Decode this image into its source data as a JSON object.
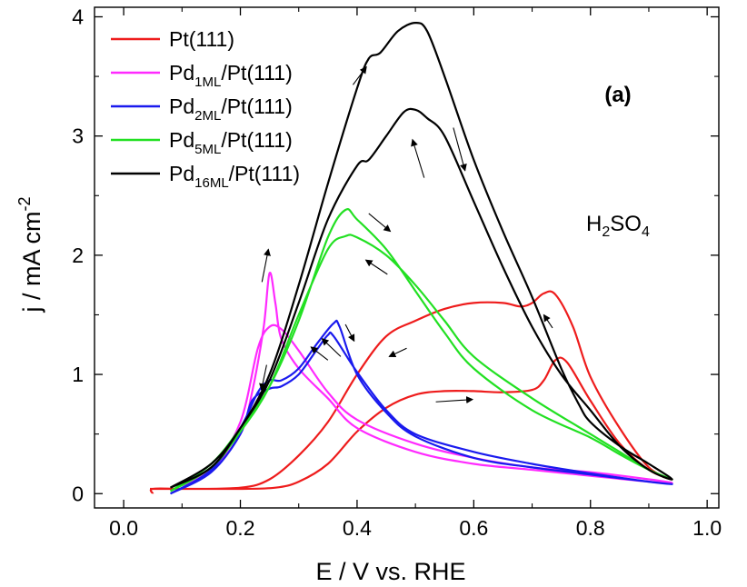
{
  "chart_data": {
    "type": "line",
    "panel_label": "(a)",
    "electrolyte": {
      "main": "H",
      "sub1": "2",
      "mid": "SO",
      "sub2": "4"
    },
    "xlabel": "E / V vs. RHE",
    "ylabel": {
      "prefix": "j / mA cm",
      "sup": "-2"
    },
    "xlim": [
      -0.05,
      1.02
    ],
    "ylim": [
      -0.12,
      4.08
    ],
    "xticks": [
      0.0,
      0.2,
      0.4,
      0.6,
      0.8,
      1.0
    ],
    "yticks": [
      0,
      1,
      2,
      3,
      4
    ],
    "xtick_labels": [
      "0.0",
      "0.2",
      "0.4",
      "0.6",
      "0.8",
      "1.0"
    ],
    "ytick_labels": [
      "0",
      "1",
      "2",
      "3",
      "4"
    ],
    "legend": {
      "placement": "top-left"
    },
    "series": [
      {
        "name": "Pt(111)",
        "label_parts": [
          "Pt(111)"
        ],
        "color": "#ee1c1c",
        "x": [
          0.05,
          0.05,
          0.1,
          0.2,
          0.26,
          0.3,
          0.35,
          0.4,
          0.45,
          0.5,
          0.55,
          0.6,
          0.65,
          0.7,
          0.72,
          0.74,
          0.76,
          0.8,
          0.85,
          0.9,
          0.94,
          0.9,
          0.85,
          0.8,
          0.77,
          0.74,
          0.72,
          0.7,
          0.68,
          0.65,
          0.6,
          0.55,
          0.5,
          0.45,
          0.4,
          0.35,
          0.3,
          0.25,
          0.2,
          0.1,
          0.045
        ],
        "y": [
          0.0,
          0.04,
          0.04,
          0.04,
          0.05,
          0.1,
          0.25,
          0.52,
          0.72,
          0.83,
          0.86,
          0.86,
          0.85,
          0.87,
          0.95,
          1.12,
          1.1,
          0.78,
          0.42,
          0.2,
          0.12,
          0.22,
          0.55,
          0.98,
          1.4,
          1.67,
          1.68,
          1.6,
          1.57,
          1.6,
          1.6,
          1.55,
          1.45,
          1.32,
          1.0,
          0.6,
          0.32,
          0.12,
          0.05,
          0.04,
          0.04
        ]
      },
      {
        "name": "Pd1ML/Pt(111)",
        "label_parts": [
          "Pd",
          "1ML",
          "/Pt(111)"
        ],
        "color": "#ff2aff",
        "x": [
          0.1,
          0.15,
          0.2,
          0.22,
          0.24,
          0.25,
          0.26,
          0.27,
          0.3,
          0.35,
          0.4,
          0.5,
          0.6,
          0.7,
          0.8,
          0.9,
          0.94,
          0.9,
          0.8,
          0.7,
          0.6,
          0.5,
          0.4,
          0.35,
          0.3,
          0.27,
          0.25,
          0.23,
          0.2,
          0.15,
          0.1
        ],
        "y": [
          0.07,
          0.2,
          0.5,
          0.85,
          1.4,
          1.85,
          1.6,
          1.3,
          1.05,
          0.8,
          0.55,
          0.35,
          0.25,
          0.2,
          0.15,
          0.1,
          0.09,
          0.12,
          0.18,
          0.22,
          0.3,
          0.42,
          0.62,
          0.85,
          1.2,
          1.38,
          1.4,
          1.22,
          0.6,
          0.2,
          0.07
        ]
      },
      {
        "name": "Pd2ML/Pt(111)",
        "label_parts": [
          "Pd",
          "2ML",
          "/Pt(111)"
        ],
        "color": "#1a1aee",
        "x": [
          0.08,
          0.15,
          0.2,
          0.23,
          0.25,
          0.27,
          0.3,
          0.33,
          0.36,
          0.37,
          0.4,
          0.45,
          0.5,
          0.6,
          0.7,
          0.8,
          0.9,
          0.94,
          0.9,
          0.8,
          0.7,
          0.6,
          0.5,
          0.45,
          0.4,
          0.36,
          0.35,
          0.33,
          0.3,
          0.27,
          0.25,
          0.22,
          0.2,
          0.15,
          0.08
        ],
        "y": [
          0.0,
          0.2,
          0.55,
          0.85,
          0.95,
          0.95,
          1.05,
          1.25,
          1.43,
          1.4,
          1.0,
          0.68,
          0.48,
          0.3,
          0.22,
          0.16,
          0.1,
          0.08,
          0.1,
          0.17,
          0.25,
          0.35,
          0.5,
          0.7,
          1.02,
          1.32,
          1.33,
          1.2,
          1.0,
          0.9,
          0.88,
          0.78,
          0.5,
          0.18,
          0.0
        ]
      },
      {
        "name": "Pd5ML/Pt(111)",
        "label_parts": [
          "Pd",
          "5ML",
          "/Pt(111)"
        ],
        "color": "#22e022",
        "x": [
          0.08,
          0.15,
          0.2,
          0.25,
          0.3,
          0.35,
          0.38,
          0.4,
          0.45,
          0.5,
          0.55,
          0.6,
          0.7,
          0.8,
          0.85,
          0.9,
          0.94,
          0.9,
          0.85,
          0.8,
          0.7,
          0.6,
          0.55,
          0.5,
          0.45,
          0.4,
          0.38,
          0.35,
          0.3,
          0.25,
          0.2,
          0.15,
          0.08
        ],
        "y": [
          0.02,
          0.25,
          0.55,
          0.9,
          1.45,
          2.15,
          2.38,
          2.3,
          2.05,
          1.7,
          1.35,
          1.05,
          0.7,
          0.47,
          0.33,
          0.2,
          0.12,
          0.2,
          0.35,
          0.5,
          0.8,
          1.15,
          1.45,
          1.75,
          2.0,
          2.15,
          2.16,
          2.05,
          1.5,
          0.9,
          0.52,
          0.22,
          0.02
        ]
      },
      {
        "name": "Pd16ML/Pt(111)",
        "label_parts": [
          "Pd",
          "16ML",
          "/Pt(111)"
        ],
        "color": "#000000",
        "x": [
          0.08,
          0.15,
          0.2,
          0.25,
          0.3,
          0.35,
          0.4,
          0.42,
          0.44,
          0.47,
          0.5,
          0.52,
          0.55,
          0.6,
          0.65,
          0.7,
          0.75,
          0.78,
          0.8,
          0.85,
          0.9,
          0.94,
          0.9,
          0.85,
          0.8,
          0.75,
          0.7,
          0.65,
          0.6,
          0.55,
          0.52,
          0.5,
          0.48,
          0.45,
          0.42,
          0.4,
          0.35,
          0.3,
          0.25,
          0.2,
          0.15,
          0.08
        ],
        "y": [
          0.05,
          0.25,
          0.55,
          1.0,
          1.75,
          2.6,
          3.4,
          3.65,
          3.7,
          3.88,
          3.95,
          3.88,
          3.5,
          2.8,
          2.2,
          1.65,
          1.05,
          0.75,
          0.6,
          0.4,
          0.25,
          0.12,
          0.2,
          0.4,
          0.7,
          1.0,
          1.4,
          1.9,
          2.45,
          3.0,
          3.15,
          3.22,
          3.2,
          3.0,
          2.8,
          2.75,
          2.3,
          1.6,
          0.95,
          0.55,
          0.22,
          0.05
        ]
      }
    ],
    "arrows": [
      {
        "x1": 0.237,
        "y1": 1.775,
        "x2": 0.248,
        "y2": 2.05
      },
      {
        "x1": 0.245,
        "y1": 1.08,
        "x2": 0.236,
        "y2": 0.87
      },
      {
        "x1": 0.35,
        "y1": 1.12,
        "x2": 0.321,
        "y2": 1.23
      },
      {
        "x1": 0.372,
        "y1": 1.15,
        "x2": 0.34,
        "y2": 1.3
      },
      {
        "x1": 0.38,
        "y1": 1.42,
        "x2": 0.395,
        "y2": 1.28
      },
      {
        "x1": 0.42,
        "y1": 2.35,
        "x2": 0.457,
        "y2": 2.2
      },
      {
        "x1": 0.452,
        "y1": 1.84,
        "x2": 0.415,
        "y2": 1.96
      },
      {
        "x1": 0.393,
        "y1": 3.43,
        "x2": 0.416,
        "y2": 3.58
      },
      {
        "x1": 0.515,
        "y1": 2.65,
        "x2": 0.495,
        "y2": 2.97
      },
      {
        "x1": 0.565,
        "y1": 3.07,
        "x2": 0.585,
        "y2": 2.71
      },
      {
        "x1": 0.485,
        "y1": 1.22,
        "x2": 0.455,
        "y2": 1.15
      },
      {
        "x1": 0.535,
        "y1": 0.77,
        "x2": 0.598,
        "y2": 0.79
      },
      {
        "x1": 0.735,
        "y1": 1.39,
        "x2": 0.72,
        "y2": 1.5
      }
    ]
  }
}
